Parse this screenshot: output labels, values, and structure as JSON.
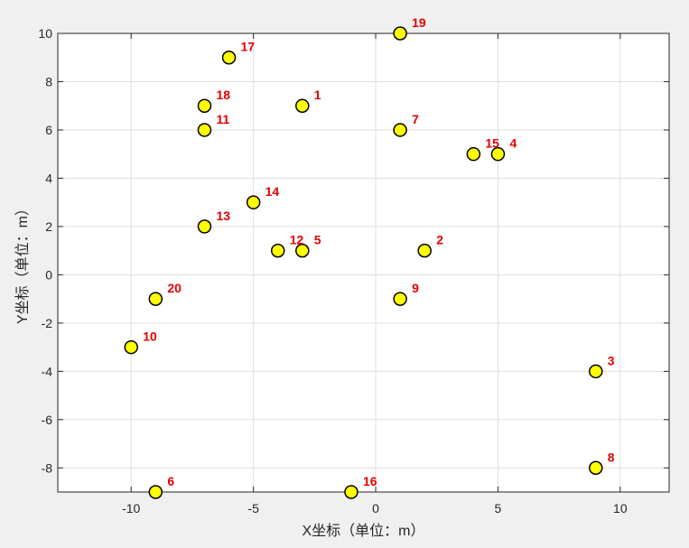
{
  "chart_data": {
    "type": "scatter",
    "title": "",
    "xlabel": "X坐标（单位：m）",
    "ylabel": "Y坐标（单位：m）",
    "xlim": [
      -13,
      12
    ],
    "ylim": [
      -9,
      10
    ],
    "xticks": [
      -10,
      -5,
      0,
      5,
      10
    ],
    "yticks": [
      -8,
      -6,
      -4,
      -2,
      0,
      2,
      4,
      6,
      8,
      10
    ],
    "grid": true,
    "marker_face_color": "#ffff00",
    "marker_edge_color": "#000000",
    "label_color": "#e60000",
    "points": [
      {
        "id": "1",
        "x": -3,
        "y": 7
      },
      {
        "id": "2",
        "x": 2,
        "y": 1
      },
      {
        "id": "3",
        "x": 9,
        "y": -4
      },
      {
        "id": "4",
        "x": 5,
        "y": 5
      },
      {
        "id": "5",
        "x": -3,
        "y": 1
      },
      {
        "id": "6",
        "x": -9,
        "y": -9
      },
      {
        "id": "7",
        "x": 1,
        "y": 6
      },
      {
        "id": "8",
        "x": 9,
        "y": -8
      },
      {
        "id": "9",
        "x": 1,
        "y": -1
      },
      {
        "id": "10",
        "x": -10,
        "y": -3
      },
      {
        "id": "11",
        "x": -7,
        "y": 6
      },
      {
        "id": "12",
        "x": -4,
        "y": 1
      },
      {
        "id": "13",
        "x": -7,
        "y": 2
      },
      {
        "id": "14",
        "x": -5,
        "y": 3
      },
      {
        "id": "15",
        "x": 4,
        "y": 5
      },
      {
        "id": "16",
        "x": -1,
        "y": -9
      },
      {
        "id": "17",
        "x": -6,
        "y": 9
      },
      {
        "id": "18",
        "x": -7,
        "y": 7
      },
      {
        "id": "19",
        "x": 1,
        "y": 10
      },
      {
        "id": "20",
        "x": -9,
        "y": -1
      }
    ]
  }
}
